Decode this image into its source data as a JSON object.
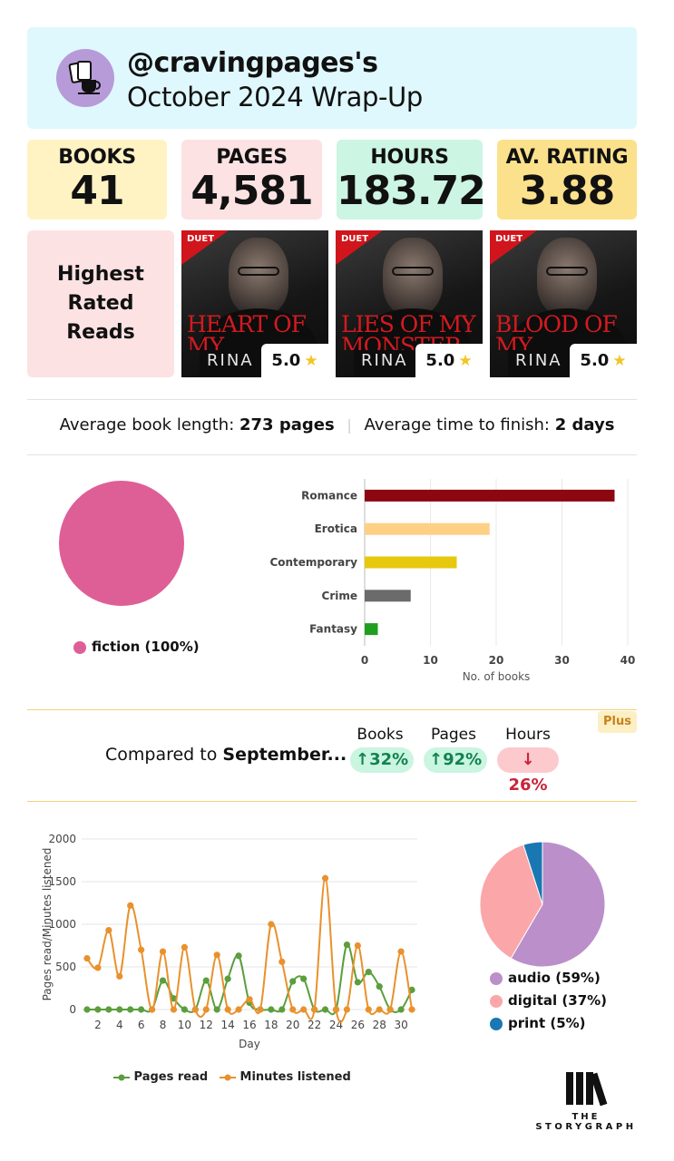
{
  "header": {
    "handle": "@cravingpages's",
    "title": "October 2024 Wrap-Up"
  },
  "stats": [
    {
      "label": "BOOKS",
      "value": "41",
      "color": "#fff2c3"
    },
    {
      "label": "PAGES",
      "value": "4,581",
      "color": "#fde2e4"
    },
    {
      "label": "HOURS",
      "value": "183.72",
      "color": "#cdf5e3"
    },
    {
      "label": "AV. RATING",
      "value": "3.88",
      "color": "#fbe18c"
    }
  ],
  "highest_rated": {
    "label": "Highest Rated Reads",
    "books": [
      {
        "cover_title": "HEART OF MY MONSTER",
        "author": "RINA K",
        "badge": "DUET",
        "rating": "5.0"
      },
      {
        "cover_title": "LIES OF MY MONSTER",
        "author": "RINA K",
        "badge": "DUET",
        "rating": "5.0"
      },
      {
        "cover_title": "BLOOD OF MY MONSTER",
        "author": "RINA K",
        "badge": "DUET",
        "rating": "5.0"
      }
    ]
  },
  "averages": {
    "length_label": "Average book length:",
    "length_value": "273 pages",
    "time_label": "Average time to finish:",
    "time_value": "2 days"
  },
  "comparison": {
    "label": "Compared to",
    "month": "September...",
    "plus_badge": "Plus",
    "items": [
      {
        "label": "Books",
        "value": "32%",
        "direction": "up"
      },
      {
        "label": "Pages",
        "value": "92%",
        "direction": "up"
      },
      {
        "label": "Hours",
        "value": "26%",
        "direction": "down"
      }
    ]
  },
  "chart_data": [
    {
      "type": "pie",
      "labels": [
        "fiction"
      ],
      "values": [
        100
      ],
      "legend": [
        "fiction (100%)"
      ],
      "colors": [
        "#de5f96"
      ]
    },
    {
      "type": "bar",
      "orientation": "horizontal",
      "categories": [
        "Romance",
        "Erotica",
        "Contemporary",
        "Crime",
        "Fantasy"
      ],
      "values": [
        38,
        19,
        14,
        7,
        2
      ],
      "colors": [
        "#8c0710",
        "#fdd085",
        "#e6c80d",
        "#6b6b6b",
        "#1f9e1f"
      ],
      "xlabel": "No. of books",
      "xlim": [
        0,
        40
      ],
      "xticks": [
        0,
        10,
        20,
        30,
        40
      ],
      "grid": true
    },
    {
      "type": "line",
      "x": [
        1,
        2,
        3,
        4,
        5,
        6,
        7,
        8,
        9,
        10,
        11,
        12,
        13,
        14,
        15,
        16,
        17,
        18,
        19,
        20,
        21,
        22,
        23,
        24,
        25,
        26,
        27,
        28,
        29,
        30,
        31
      ],
      "xticks": [
        2,
        4,
        6,
        8,
        10,
        12,
        14,
        16,
        18,
        20,
        22,
        24,
        26,
        28,
        30
      ],
      "xlabel": "Day",
      "ylabel": "Pages read/Minutes listened",
      "ylim": [
        0,
        2000
      ],
      "yticks": [
        0,
        500,
        1000,
        1500,
        2000
      ],
      "grid": true,
      "legend_position": "bottom",
      "series": [
        {
          "name": "Pages read",
          "color": "#5a9e3d",
          "values": [
            0,
            0,
            0,
            0,
            0,
            0,
            0,
            340,
            130,
            0,
            0,
            340,
            0,
            360,
            630,
            80,
            0,
            0,
            0,
            330,
            360,
            0,
            0,
            0,
            760,
            320,
            440,
            270,
            0,
            0,
            230
          ]
        },
        {
          "name": "Minutes listened",
          "color": "#e8912d",
          "values": [
            600,
            490,
            930,
            390,
            1220,
            700,
            0,
            680,
            0,
            730,
            0,
            0,
            640,
            0,
            0,
            120,
            0,
            1000,
            560,
            0,
            0,
            0,
            1540,
            0,
            0,
            750,
            0,
            0,
            0,
            680,
            0
          ]
        }
      ]
    },
    {
      "type": "pie",
      "labels": [
        "audio",
        "digital",
        "print"
      ],
      "values": [
        59,
        37,
        5
      ],
      "legend": [
        "audio (59%)",
        "digital (37%)",
        "print (5%)"
      ],
      "colors": [
        "#bb8fc9",
        "#fba6a8",
        "#1978b2"
      ]
    }
  ],
  "logo": {
    "line1": "THE",
    "line2": "STORYGRAPH"
  }
}
